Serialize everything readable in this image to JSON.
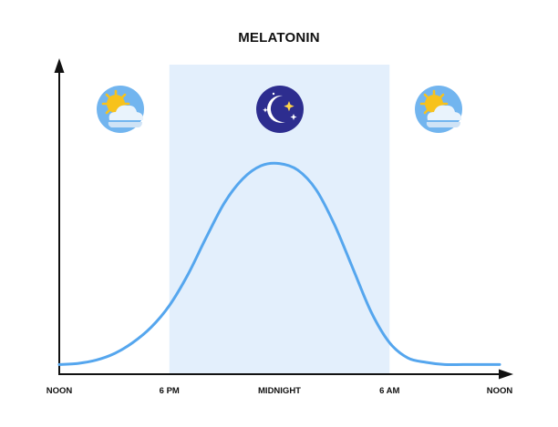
{
  "chart_data": {
    "type": "line",
    "title": "MELATONIN",
    "xlabel": "",
    "ylabel": "",
    "categories": [
      "NOON",
      "6 PM",
      "MIDNIGHT",
      "6 AM",
      "NOON"
    ],
    "x_hours": [
      12,
      18,
      24,
      30,
      36
    ],
    "xlim": [
      12,
      36
    ],
    "ylim": [
      0,
      100
    ],
    "grid": false,
    "legend": "none",
    "series": [
      {
        "color": "#55a6ee",
        "x": [
          12,
          13,
          14,
          15,
          16,
          17,
          18,
          19,
          20,
          21,
          22,
          23,
          24,
          25,
          26,
          27,
          28,
          29,
          30,
          31,
          32,
          33,
          34,
          35,
          36
        ],
        "values": [
          4,
          4.5,
          6,
          9,
          14,
          21,
          31,
          45,
          62,
          78,
          89,
          95,
          96,
          93,
          84,
          68,
          48,
          28,
          14,
          7,
          5,
          4,
          4,
          4,
          4
        ]
      }
    ],
    "night_band": {
      "from": 18,
      "to": 30,
      "color": "#e3effc"
    },
    "icons": [
      {
        "name": "sun-cloud-icon",
        "position": "left"
      },
      {
        "name": "moon-stars-icon",
        "position": "center"
      },
      {
        "name": "sun-cloud-icon",
        "position": "right"
      }
    ],
    "colors": {
      "axis": "#111111",
      "curve": "#55a6ee",
      "band": "#e3effc",
      "moon_badge": "#2d2d8f",
      "sun": "#f7c21c",
      "sky_badge": "#72b5ef",
      "cloud": "#e9f3fc"
    }
  }
}
